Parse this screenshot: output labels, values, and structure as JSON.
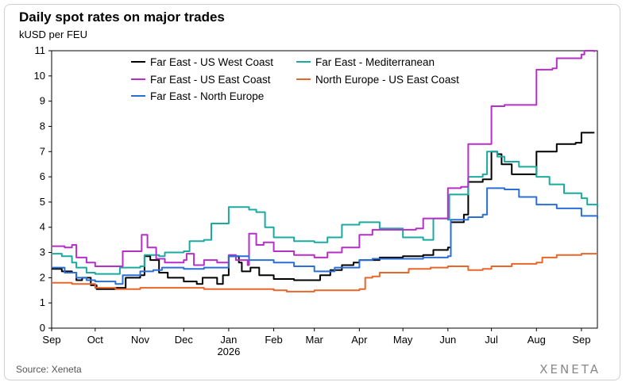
{
  "title": "Daily spot rates on major trades",
  "subtitle": "kUSD per FEU",
  "source": "Source: Xeneta",
  "brand": "XENETA",
  "chart_data": {
    "type": "line",
    "ylim": [
      0,
      11
    ],
    "yticks": [
      "0",
      "1",
      "2",
      "3",
      "4",
      "5",
      "6",
      "7",
      "8",
      "9",
      "10",
      "11"
    ],
    "x_range": [
      "2025-09-01",
      "2026-09-12"
    ],
    "xticks": [
      {
        "label": "Sep",
        "date": "2025-09-01",
        "sub": ""
      },
      {
        "label": "Oct",
        "date": "2025-10-01",
        "sub": ""
      },
      {
        "label": "Nov",
        "date": "2025-11-01",
        "sub": ""
      },
      {
        "label": "Dec",
        "date": "2025-12-01",
        "sub": ""
      },
      {
        "label": "Jan",
        "date": "2026-01-01",
        "sub": "2026"
      },
      {
        "label": "Feb",
        "date": "2026-02-01",
        "sub": ""
      },
      {
        "label": "Mar",
        "date": "2026-03-01",
        "sub": ""
      },
      {
        "label": "Apr",
        "date": "2026-04-01",
        "sub": ""
      },
      {
        "label": "May",
        "date": "2026-05-01",
        "sub": ""
      },
      {
        "label": "Jun",
        "date": "2026-06-01",
        "sub": ""
      },
      {
        "label": "Jul",
        "date": "2026-07-01",
        "sub": ""
      },
      {
        "label": "Aug",
        "date": "2026-08-01",
        "sub": ""
      },
      {
        "label": "Sep",
        "date": "2026-09-01",
        "sub": ""
      }
    ],
    "grid": false,
    "legend_position": "top",
    "series": [
      {
        "name": "Far East - US West Coast",
        "color": "#000000",
        "points": [
          [
            "2025-09-01",
            2.35
          ],
          [
            "2025-09-08",
            2.25
          ],
          [
            "2025-09-15",
            2.2
          ],
          [
            "2025-09-18",
            1.9
          ],
          [
            "2025-09-22",
            2.0
          ],
          [
            "2025-09-28",
            1.7
          ],
          [
            "2025-10-02",
            1.55
          ],
          [
            "2025-10-15",
            1.6
          ],
          [
            "2025-10-22",
            2.0
          ],
          [
            "2025-11-01",
            2.1
          ],
          [
            "2025-11-04",
            2.85
          ],
          [
            "2025-11-08",
            2.7
          ],
          [
            "2025-11-14",
            2.2
          ],
          [
            "2025-11-20",
            2.0
          ],
          [
            "2025-12-01",
            1.85
          ],
          [
            "2025-12-10",
            1.75
          ],
          [
            "2025-12-14",
            2.0
          ],
          [
            "2025-12-24",
            1.75
          ],
          [
            "2025-12-28",
            2.1
          ],
          [
            "2026-01-01",
            2.85
          ],
          [
            "2026-01-08",
            2.6
          ],
          [
            "2026-01-10",
            2.25
          ],
          [
            "2026-01-16",
            2.4
          ],
          [
            "2026-01-22",
            2.1
          ],
          [
            "2026-02-01",
            1.95
          ],
          [
            "2026-02-15",
            1.9
          ],
          [
            "2026-03-01",
            1.9
          ],
          [
            "2026-03-05",
            2.1
          ],
          [
            "2026-03-12",
            2.3
          ],
          [
            "2026-03-20",
            2.5
          ],
          [
            "2026-03-28",
            2.6
          ],
          [
            "2026-04-01",
            2.7
          ],
          [
            "2026-04-15",
            2.8
          ],
          [
            "2026-05-01",
            2.85
          ],
          [
            "2026-05-15",
            2.9
          ],
          [
            "2026-05-22",
            3.1
          ],
          [
            "2026-06-01",
            3.2
          ],
          [
            "2026-06-03",
            4.2
          ],
          [
            "2026-06-12",
            4.5
          ],
          [
            "2026-06-15",
            5.8
          ],
          [
            "2026-06-25",
            5.9
          ],
          [
            "2026-07-01",
            7.0
          ],
          [
            "2026-07-05",
            6.9
          ],
          [
            "2026-07-08",
            6.5
          ],
          [
            "2026-07-15",
            6.1
          ],
          [
            "2026-07-28",
            6.1
          ],
          [
            "2026-08-01",
            7.0
          ],
          [
            "2026-08-15",
            7.3
          ],
          [
            "2026-08-28",
            7.35
          ],
          [
            "2026-09-01",
            7.75
          ],
          [
            "2026-09-10",
            7.75
          ]
        ]
      },
      {
        "name": "Far East - Mediterranean",
        "color": "#1aaba0",
        "points": [
          [
            "2025-09-01",
            2.95
          ],
          [
            "2025-09-08",
            2.85
          ],
          [
            "2025-09-15",
            2.6
          ],
          [
            "2025-09-18",
            2.4
          ],
          [
            "2025-09-25",
            2.2
          ],
          [
            "2025-10-01",
            2.15
          ],
          [
            "2025-10-12",
            2.15
          ],
          [
            "2025-10-18",
            2.4
          ],
          [
            "2025-11-01",
            2.45
          ],
          [
            "2025-11-04",
            2.9
          ],
          [
            "2025-11-14",
            2.85
          ],
          [
            "2025-11-18",
            3.0
          ],
          [
            "2025-12-01",
            3.05
          ],
          [
            "2025-12-05",
            3.45
          ],
          [
            "2025-12-15",
            3.5
          ],
          [
            "2025-12-20",
            4.15
          ],
          [
            "2026-01-01",
            4.25
          ],
          [
            "2026-01-01",
            4.8
          ],
          [
            "2026-01-15",
            4.7
          ],
          [
            "2026-01-20",
            4.6
          ],
          [
            "2026-01-26",
            4.0
          ],
          [
            "2026-02-01",
            3.6
          ],
          [
            "2026-02-15",
            3.45
          ],
          [
            "2026-03-01",
            3.4
          ],
          [
            "2026-03-10",
            3.6
          ],
          [
            "2026-03-20",
            4.1
          ],
          [
            "2026-04-01",
            4.2
          ],
          [
            "2026-04-15",
            3.95
          ],
          [
            "2026-05-01",
            3.6
          ],
          [
            "2026-05-15",
            3.5
          ],
          [
            "2026-05-22",
            4.35
          ],
          [
            "2026-06-01",
            4.3
          ],
          [
            "2026-06-02",
            5.3
          ],
          [
            "2026-06-15",
            6.0
          ],
          [
            "2026-06-25",
            6.1
          ],
          [
            "2026-06-28",
            7.0
          ],
          [
            "2026-07-05",
            6.8
          ],
          [
            "2026-07-10",
            6.6
          ],
          [
            "2026-07-20",
            6.4
          ],
          [
            "2026-08-01",
            6.0
          ],
          [
            "2026-08-10",
            5.7
          ],
          [
            "2026-08-20",
            5.35
          ],
          [
            "2026-09-01",
            5.15
          ],
          [
            "2026-09-05",
            4.9
          ],
          [
            "2026-09-12",
            4.8
          ]
        ]
      },
      {
        "name": "Far East - US East Coast",
        "color": "#b62fc8",
        "points": [
          [
            "2025-09-01",
            3.25
          ],
          [
            "2025-09-10",
            3.2
          ],
          [
            "2025-09-15",
            3.3
          ],
          [
            "2025-09-18",
            2.8
          ],
          [
            "2025-09-25",
            2.6
          ],
          [
            "2025-10-01",
            2.45
          ],
          [
            "2025-10-15",
            2.45
          ],
          [
            "2025-10-20",
            3.05
          ],
          [
            "2025-11-01",
            3.05
          ],
          [
            "2025-11-02",
            3.7
          ],
          [
            "2025-11-06",
            3.2
          ],
          [
            "2025-11-12",
            2.75
          ],
          [
            "2025-11-18",
            2.6
          ],
          [
            "2025-12-01",
            2.7
          ],
          [
            "2025-12-03",
            2.95
          ],
          [
            "2025-12-08",
            2.5
          ],
          [
            "2025-12-15",
            2.7
          ],
          [
            "2025-12-24",
            2.6
          ],
          [
            "2026-01-01",
            2.9
          ],
          [
            "2026-01-06",
            2.7
          ],
          [
            "2026-01-14",
            2.5
          ],
          [
            "2026-01-15",
            3.75
          ],
          [
            "2026-01-20",
            3.3
          ],
          [
            "2026-01-25",
            3.4
          ],
          [
            "2026-02-01",
            3.05
          ],
          [
            "2026-02-15",
            2.9
          ],
          [
            "2026-03-01",
            2.8
          ],
          [
            "2026-03-10",
            3.0
          ],
          [
            "2026-03-20",
            3.2
          ],
          [
            "2026-04-01",
            3.7
          ],
          [
            "2026-04-10",
            3.9
          ],
          [
            "2026-05-01",
            3.9
          ],
          [
            "2026-05-10",
            3.95
          ],
          [
            "2026-05-15",
            4.35
          ],
          [
            "2026-05-29",
            4.35
          ],
          [
            "2026-06-01",
            5.55
          ],
          [
            "2026-06-10",
            5.6
          ],
          [
            "2026-06-15",
            7.3
          ],
          [
            "2026-06-27",
            7.3
          ],
          [
            "2026-07-01",
            8.8
          ],
          [
            "2026-07-10",
            8.85
          ],
          [
            "2026-07-20",
            8.85
          ],
          [
            "2026-07-30",
            8.85
          ],
          [
            "2026-08-01",
            10.25
          ],
          [
            "2026-08-12",
            10.3
          ],
          [
            "2026-08-15",
            10.7
          ],
          [
            "2026-09-01",
            10.85
          ],
          [
            "2026-09-03",
            11.0
          ],
          [
            "2026-09-10",
            10.95
          ]
        ]
      },
      {
        "name": "North Europe - US East Coast",
        "color": "#e8662a",
        "points": [
          [
            "2025-09-01",
            1.8
          ],
          [
            "2025-09-15",
            1.75
          ],
          [
            "2025-10-01",
            1.6
          ],
          [
            "2025-10-15",
            1.55
          ],
          [
            "2025-11-01",
            1.6
          ],
          [
            "2025-12-01",
            1.6
          ],
          [
            "2025-12-15",
            1.55
          ],
          [
            "2026-01-01",
            1.55
          ],
          [
            "2026-01-15",
            1.55
          ],
          [
            "2026-02-01",
            1.5
          ],
          [
            "2026-02-10",
            1.45
          ],
          [
            "2026-03-01",
            1.5
          ],
          [
            "2026-03-20",
            1.5
          ],
          [
            "2026-04-01",
            1.55
          ],
          [
            "2026-04-05",
            2.0
          ],
          [
            "2026-04-10",
            2.05
          ],
          [
            "2026-04-15",
            2.2
          ],
          [
            "2026-05-01",
            2.2
          ],
          [
            "2026-05-05",
            2.35
          ],
          [
            "2026-05-20",
            2.4
          ],
          [
            "2026-06-01",
            2.45
          ],
          [
            "2026-06-15",
            2.3
          ],
          [
            "2026-06-25",
            2.35
          ],
          [
            "2026-07-01",
            2.45
          ],
          [
            "2026-07-15",
            2.55
          ],
          [
            "2026-08-01",
            2.6
          ],
          [
            "2026-08-05",
            2.8
          ],
          [
            "2026-08-15",
            2.9
          ],
          [
            "2026-09-01",
            2.95
          ],
          [
            "2026-09-12",
            2.95
          ]
        ]
      },
      {
        "name": "Far East  - North Europe",
        "color": "#2a6fd6",
        "points": [
          [
            "2025-09-01",
            2.4
          ],
          [
            "2025-09-10",
            2.2
          ],
          [
            "2025-09-18",
            2.0
          ],
          [
            "2025-09-25",
            1.9
          ],
          [
            "2025-10-01",
            1.85
          ],
          [
            "2025-10-15",
            1.75
          ],
          [
            "2025-10-20",
            2.1
          ],
          [
            "2025-11-01",
            2.25
          ],
          [
            "2025-11-10",
            2.3
          ],
          [
            "2025-11-16",
            2.4
          ],
          [
            "2025-12-01",
            2.35
          ],
          [
            "2025-12-15",
            2.4
          ],
          [
            "2026-01-01",
            2.65
          ],
          [
            "2026-01-01",
            2.85
          ],
          [
            "2026-01-15",
            2.7
          ],
          [
            "2026-02-01",
            2.6
          ],
          [
            "2026-02-15",
            2.45
          ],
          [
            "2026-03-01",
            2.25
          ],
          [
            "2026-03-15",
            2.4
          ],
          [
            "2026-04-01",
            2.7
          ],
          [
            "2026-04-10",
            2.75
          ],
          [
            "2026-05-01",
            2.75
          ],
          [
            "2026-05-15",
            2.8
          ],
          [
            "2026-06-01",
            2.85
          ],
          [
            "2026-06-03",
            4.3
          ],
          [
            "2026-06-15",
            4.4
          ],
          [
            "2026-06-25",
            4.5
          ],
          [
            "2026-06-28",
            5.55
          ],
          [
            "2026-07-10",
            5.5
          ],
          [
            "2026-07-20",
            5.2
          ],
          [
            "2026-08-01",
            4.9
          ],
          [
            "2026-08-15",
            4.75
          ],
          [
            "2026-09-01",
            4.45
          ],
          [
            "2026-09-12",
            4.35
          ]
        ]
      }
    ]
  }
}
